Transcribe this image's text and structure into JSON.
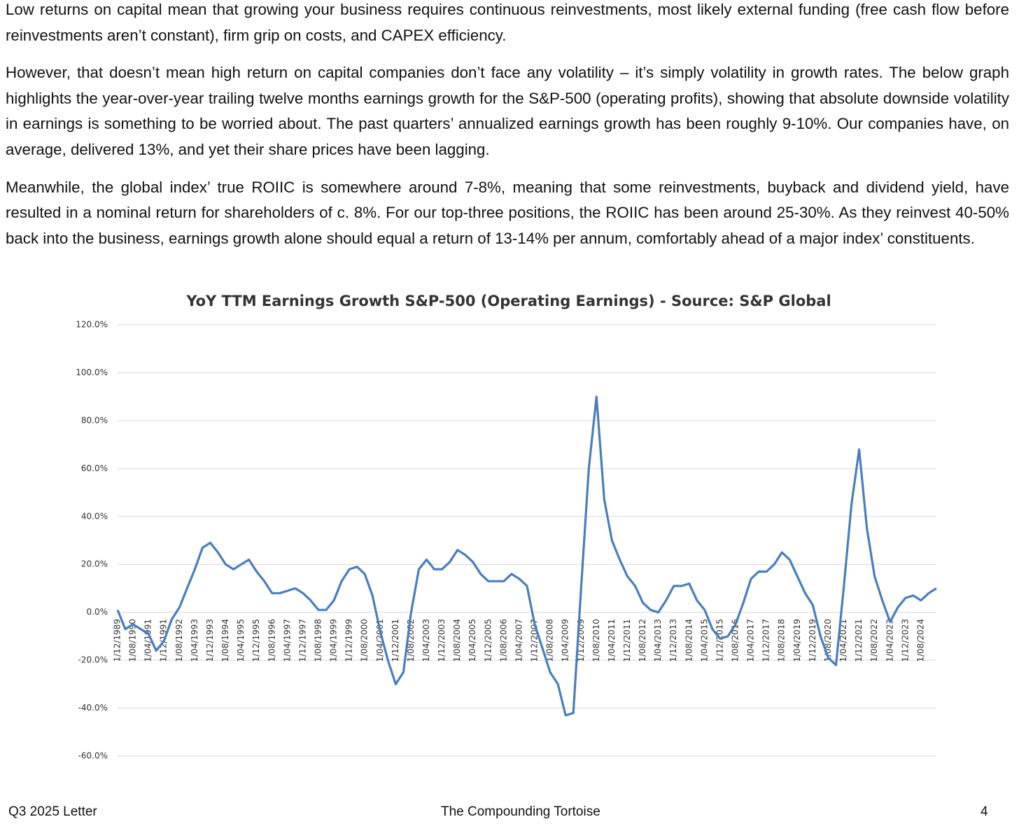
{
  "paragraphs": [
    "Low returns on capital mean that growing your business requires continuous reinvestments, most likely external funding (free cash flow before reinvestments aren’t constant), firm grip on costs, and CAPEX efficiency.",
    "However, that doesn’t mean high return on capital companies don’t face any volatility – it’s simply volatility in growth rates. The below graph highlights the year-over-year trailing twelve months earnings growth for the S&P-500 (operating profits), showing that absolute downside volatility in earnings is something to be worried about. The past quarters’ annualized earnings growth has been roughly 9-10%. Our companies have, on average, delivered 13%, and yet their share prices have been lagging.",
    "Meanwhile, the global index’ true ROIIC is somewhere around 7-8%, meaning that some reinvestments, buyback and dividend yield, have resulted in a nominal return for shareholders of c. 8%. For our top-three positions, the ROIIC has been around 25-30%. As they reinvest 40-50% back into the business, earnings growth alone should equal a return of 13-14% per annum, comfortably ahead of a major index’ constituents."
  ],
  "chart_data": {
    "type": "line",
    "title": "YoY TTM Earnings Growth S&P-500 (Operating Earnings) - Source: S&P Global",
    "categories": [
      "1/12/1989",
      null,
      "1/08/1990",
      null,
      "1/04/1991",
      null,
      "1/12/1991",
      null,
      "1/08/1992",
      null,
      "1/04/1993",
      null,
      "1/12/1993",
      null,
      "1/08/1994",
      null,
      "1/04/1995",
      null,
      "1/12/1995",
      null,
      "1/08/1996",
      null,
      "1/04/1997",
      null,
      "1/12/1997",
      null,
      "1/08/1998",
      null,
      "1/04/1999",
      null,
      "1/12/1999",
      null,
      "1/08/2000",
      null,
      "1/04/2001",
      null,
      "1/12/2001",
      null,
      "1/08/2002",
      null,
      "1/04/2003",
      null,
      "1/12/2003",
      null,
      "1/08/2004",
      null,
      "1/04/2005",
      null,
      "1/12/2005",
      null,
      "1/08/2006",
      null,
      "1/04/2007",
      null,
      "1/12/2007",
      null,
      "1/08/2008",
      null,
      "1/04/2009",
      null,
      "1/12/2009",
      null,
      "1/08/2010",
      null,
      "1/04/2011",
      null,
      "1/12/2011",
      null,
      "1/08/2012",
      null,
      "1/04/2013",
      null,
      "1/12/2013",
      null,
      "1/08/2014",
      null,
      "1/04/2015",
      null,
      "1/12/2015",
      null,
      "1/08/2016",
      null,
      "1/04/2017",
      null,
      "1/12/2017",
      null,
      "1/08/2018",
      null,
      "1/04/2019",
      null,
      "1/12/2019",
      null,
      "1/08/2020",
      null,
      "1/04/2021",
      null,
      "1/12/2021",
      null,
      "1/08/2022",
      null,
      "1/04/2023",
      null,
      "1/12/2023",
      null,
      "1/08/2024",
      null,
      null
    ],
    "values": [
      1,
      -7,
      -5,
      -7,
      -9,
      -16,
      -12,
      -3,
      2,
      10,
      18,
      27,
      29,
      25,
      20,
      18,
      20,
      22,
      17,
      13,
      8,
      8,
      9,
      10,
      8,
      5,
      1,
      1,
      5,
      13,
      18,
      19,
      16,
      7,
      -8,
      -20,
      -30,
      -25,
      0,
      18,
      22,
      18,
      18,
      21,
      26,
      24,
      21,
      16,
      13,
      13,
      13,
      16,
      14,
      11,
      -5,
      -15,
      -25,
      -30,
      -43,
      -42,
      10,
      60,
      90,
      47,
      30,
      22,
      15,
      11,
      4,
      1,
      0,
      5,
      11,
      11,
      12,
      5,
      1,
      -7,
      -11,
      -10,
      -5,
      4,
      14,
      17,
      17,
      20,
      25,
      22,
      15,
      8,
      3,
      -10,
      -19,
      -22,
      10,
      45,
      68,
      35,
      15,
      5,
      -4,
      2,
      6,
      7,
      5,
      8,
      10
    ],
    "color": "#4a7ebb",
    "ylim": [
      -60,
      120
    ],
    "yticks": [
      {
        "value": -60,
        "label": "-60.0%"
      },
      {
        "value": -40,
        "label": "-40.0%"
      },
      {
        "value": -20,
        "label": "-20.0%"
      },
      {
        "value": 0,
        "label": "0.0%"
      },
      {
        "value": 20,
        "label": "20.0%"
      },
      {
        "value": 40,
        "label": "40.0%"
      },
      {
        "value": 60,
        "label": "60.0%"
      },
      {
        "value": 80,
        "label": "80.0%"
      },
      {
        "value": 100,
        "label": "100.0%"
      },
      {
        "value": 120,
        "label": "120.0%"
      }
    ],
    "grid": true
  },
  "footer": {
    "left": "Q3 2025 Letter",
    "center": "The Compounding Tortoise",
    "right": "4"
  }
}
